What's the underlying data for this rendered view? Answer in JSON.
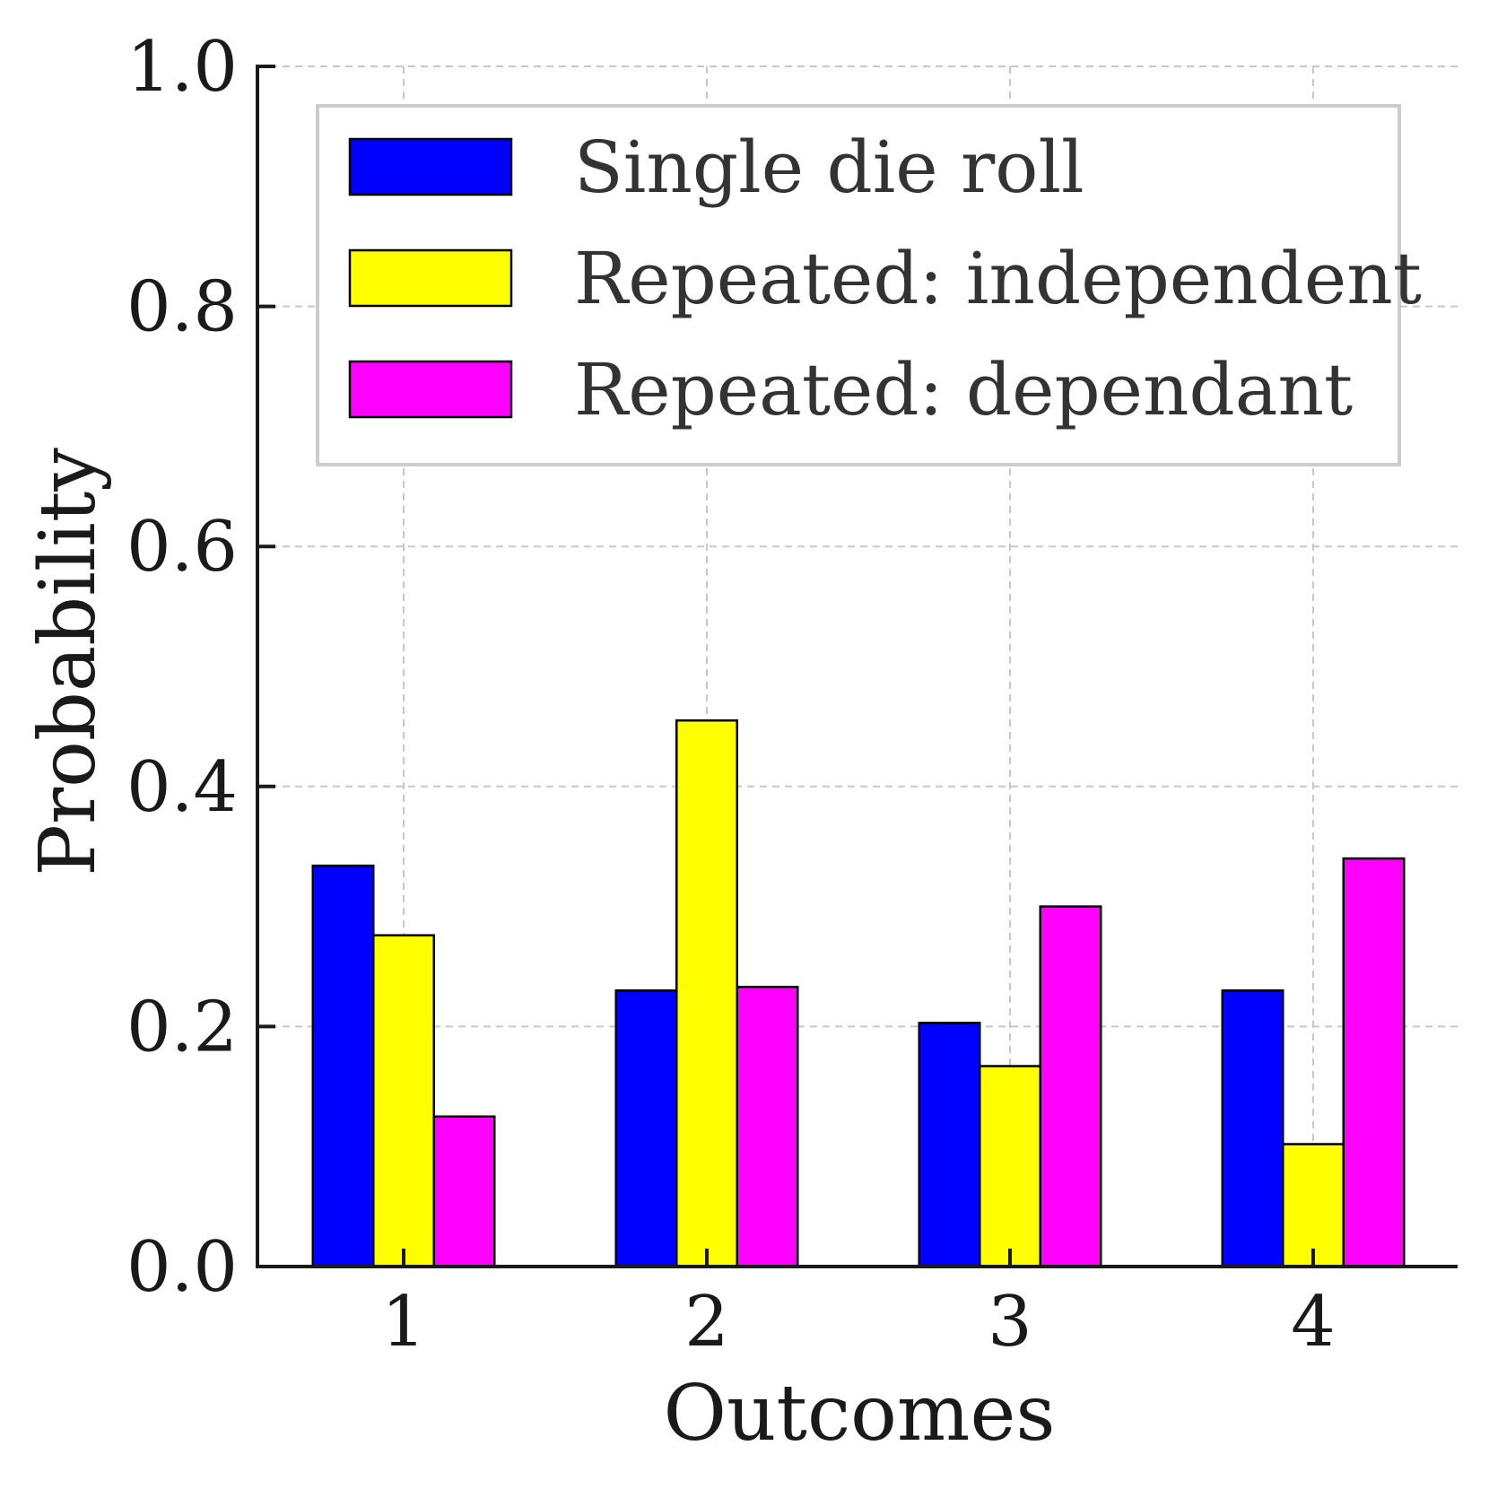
{
  "chart_data": {
    "type": "bar",
    "categories": [
      "1",
      "2",
      "3",
      "4"
    ],
    "series": [
      {
        "name": "Single die roll",
        "color": "#0000ff",
        "values": [
          0.334,
          0.23,
          0.203,
          0.23
        ]
      },
      {
        "name": "Repeated: independent",
        "color": "#ffff00",
        "values": [
          0.276,
          0.455,
          0.167,
          0.102
        ]
      },
      {
        "name": "Repeated: dependant",
        "color": "#ff00ff",
        "values": [
          0.125,
          0.233,
          0.3,
          0.34
        ]
      }
    ],
    "xlabel": "Outcomes",
    "ylabel": "Probability",
    "ylim": [
      0,
      1
    ],
    "yticks": [
      "0.0",
      "0.2",
      "0.4",
      "0.6",
      "0.8",
      "1.0"
    ],
    "yticks_values": [
      0,
      0.2,
      0.4,
      0.6,
      0.8,
      1.0
    ],
    "grid": true,
    "legend_position": "top-right"
  }
}
